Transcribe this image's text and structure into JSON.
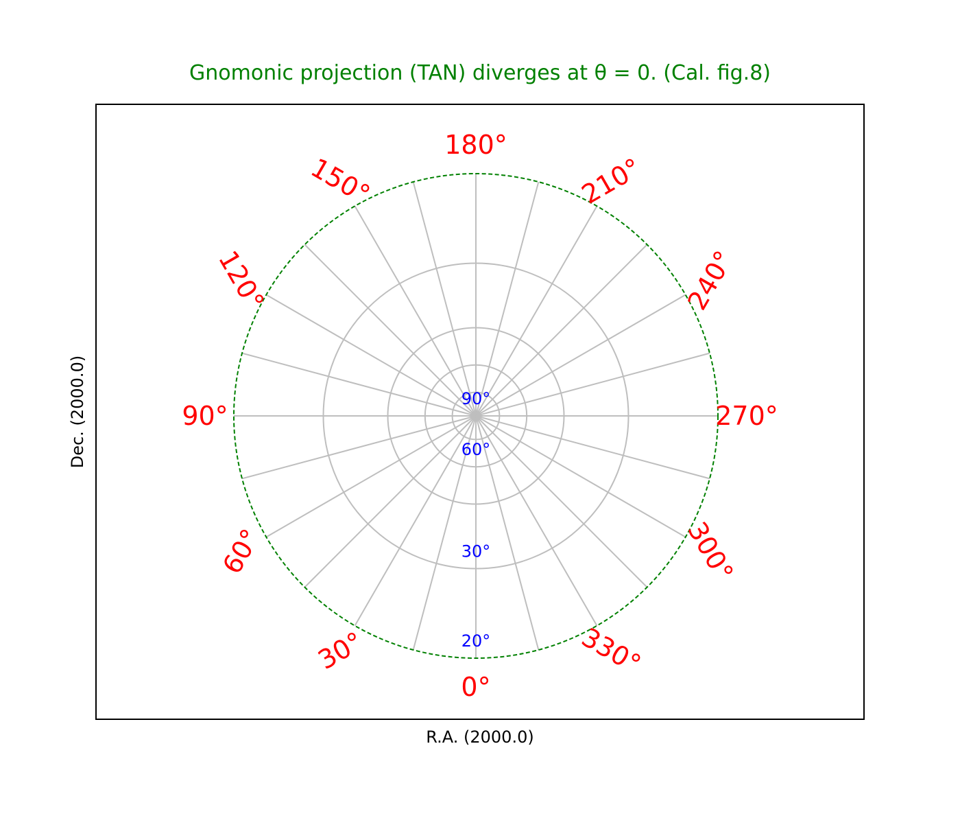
{
  "chart_data": {
    "type": "polar-projection",
    "title": "Gnomonic projection (TAN) diverges at θ = 0. (Cal. fig.8)",
    "xlabel": "R.A. (2000.0)",
    "ylabel": "Dec. (2000.0)",
    "projection": "TAN (gnomonic), north pole at centre",
    "grid": true,
    "ra_meridians_deg": [
      0,
      15,
      30,
      45,
      60,
      75,
      90,
      105,
      120,
      135,
      150,
      165,
      180,
      195,
      210,
      225,
      240,
      255,
      270,
      285,
      300,
      315,
      330,
      345
    ],
    "dec_parallels_deg": [
      90,
      75,
      60,
      45,
      30,
      20
    ],
    "boundary_dec_deg": 20,
    "ra_tick_labels": [
      {
        "value": 0,
        "text": "0°"
      },
      {
        "value": 30,
        "text": "30°"
      },
      {
        "value": 60,
        "text": "60°"
      },
      {
        "value": 90,
        "text": "90°"
      },
      {
        "value": 120,
        "text": "120°"
      },
      {
        "value": 150,
        "text": "150°"
      },
      {
        "value": 180,
        "text": "180°"
      },
      {
        "value": 210,
        "text": "210°"
      },
      {
        "value": 240,
        "text": "240°"
      },
      {
        "value": 270,
        "text": "270°"
      },
      {
        "value": 300,
        "text": "300°"
      },
      {
        "value": 330,
        "text": "330°"
      }
    ],
    "dec_tick_labels": [
      {
        "value": 90,
        "text": "90°"
      },
      {
        "value": 60,
        "text": "60°"
      },
      {
        "value": 30,
        "text": "30°"
      },
      {
        "value": 20,
        "text": "20°"
      }
    ],
    "colors": {
      "title": "#008000",
      "boundary": "#008000",
      "ra_labels": "#ff0000",
      "dec_labels": "#0000ff",
      "grid": "#bebebe",
      "frame": "#000000"
    }
  }
}
